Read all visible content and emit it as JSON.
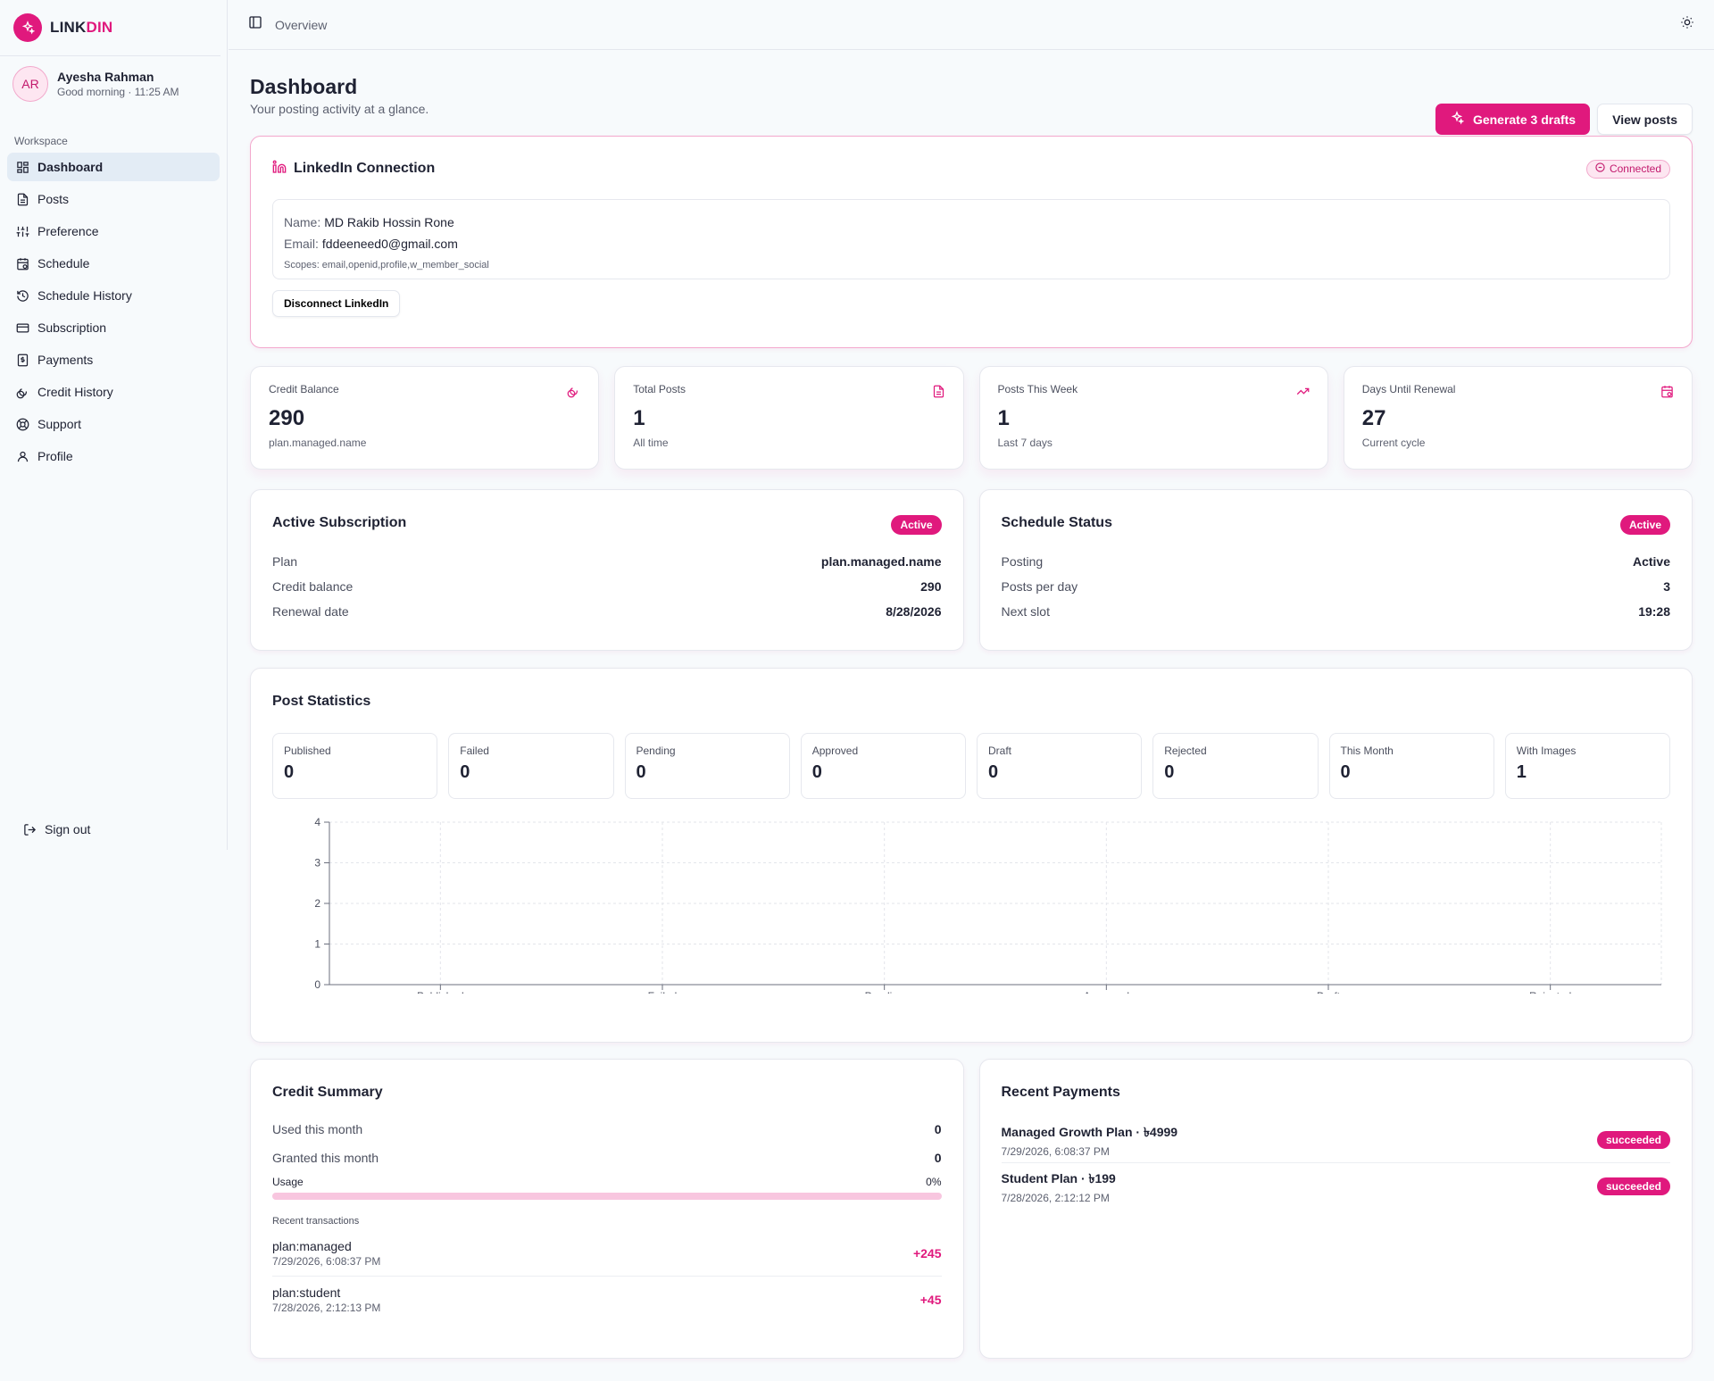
{
  "brand": {
    "part1": "LINK",
    "part2": "DIN",
    "accent": "#e0197d"
  },
  "user": {
    "initials": "AR",
    "name": "Ayesha Rahman",
    "greeting": "Good morning · 11:25 AM"
  },
  "sidebar": {
    "section_label": "Workspace",
    "items": [
      {
        "label": "Dashboard",
        "icon": "dashboard-icon"
      },
      {
        "label": "Posts",
        "icon": "document-icon"
      },
      {
        "label": "Preference",
        "icon": "sliders-icon"
      },
      {
        "label": "Schedule",
        "icon": "calendar-clock-icon"
      },
      {
        "label": "Schedule History",
        "icon": "history-icon"
      },
      {
        "label": "Subscription",
        "icon": "credit-card-icon"
      },
      {
        "label": "Payments",
        "icon": "receipt-icon"
      },
      {
        "label": "Credit History",
        "icon": "coins-icon"
      },
      {
        "label": "Support",
        "icon": "lifebuoy-icon"
      },
      {
        "label": "Profile",
        "icon": "user-icon"
      }
    ],
    "signout": "Sign out"
  },
  "topbar": {
    "breadcrumb": "Overview"
  },
  "header": {
    "title": "Dashboard",
    "subtitle": "Your posting activity at a glance.",
    "primary_button": "Generate 3 drafts",
    "secondary_button": "View posts"
  },
  "connection": {
    "title": "LinkedIn Connection",
    "status": "Connected",
    "name_label": "Name:",
    "name": "MD Rakib Hossin Rone",
    "email_label": "Email:",
    "email": "fddeeneed0@gmail.com",
    "scopes_label": "Scopes:",
    "scopes": "email,openid,profile,w_member_social",
    "disconnect": "Disconnect LinkedIn"
  },
  "stats": [
    {
      "label": "Credit Balance",
      "value": "290",
      "note": "plan.managed.name",
      "icon": "coins-icon"
    },
    {
      "label": "Total Posts",
      "value": "1",
      "note": "All time",
      "icon": "document-icon"
    },
    {
      "label": "Posts This Week",
      "value": "1",
      "note": "Last 7 days",
      "icon": "trending-up-icon"
    },
    {
      "label": "Days Until Renewal",
      "value": "27",
      "note": "Current cycle",
      "icon": "calendar-clock-icon"
    }
  ],
  "subscription": {
    "title": "Active Subscription",
    "badge": "Active",
    "rows": [
      {
        "k": "Plan",
        "v": "plan.managed.name"
      },
      {
        "k": "Credit balance",
        "v": "290"
      },
      {
        "k": "Renewal date",
        "v": "8/28/2026"
      }
    ]
  },
  "schedule": {
    "title": "Schedule Status",
    "badge": "Active",
    "rows": [
      {
        "k": "Posting",
        "v": "Active"
      },
      {
        "k": "Posts per day",
        "v": "3"
      },
      {
        "k": "Next slot",
        "v": "19:28"
      }
    ]
  },
  "post_stats": {
    "title": "Post Statistics",
    "tiles": [
      {
        "label": "Published",
        "value": "0"
      },
      {
        "label": "Failed",
        "value": "0"
      },
      {
        "label": "Pending",
        "value": "0"
      },
      {
        "label": "Approved",
        "value": "0"
      },
      {
        "label": "Draft",
        "value": "0"
      },
      {
        "label": "Rejected",
        "value": "0"
      },
      {
        "label": "This Month",
        "value": "0"
      },
      {
        "label": "With Images",
        "value": "1"
      }
    ]
  },
  "chart_data": {
    "type": "bar",
    "categories": [
      "Published",
      "Failed",
      "Pending",
      "Approved",
      "Draft",
      "Rejected"
    ],
    "values": [
      0,
      0,
      0,
      0,
      0,
      0
    ],
    "title": "",
    "xlabel": "",
    "ylabel": "",
    "ylim": [
      0,
      4
    ],
    "yticks": [
      "0",
      "1",
      "2",
      "3",
      "4"
    ],
    "grid": true
  },
  "credit_summary": {
    "title": "Credit Summary",
    "rows": [
      {
        "k": "Used this month",
        "v": "0"
      },
      {
        "k": "Granted this month",
        "v": "0"
      }
    ],
    "usage_label": "Usage",
    "usage_pct": "0%",
    "usage_value": 0,
    "recent_label": "Recent transactions",
    "transactions": [
      {
        "name": "plan:managed",
        "date": "7/29/2026, 6:08:37 PM",
        "amount": "+245"
      },
      {
        "name": "plan:student",
        "date": "7/28/2026, 2:12:13 PM",
        "amount": "+45"
      }
    ]
  },
  "payments": {
    "title": "Recent Payments",
    "items": [
      {
        "name": "Managed Growth Plan · ৳4999",
        "date": "7/29/2026, 6:08:37 PM",
        "status": "succeeded"
      },
      {
        "name": "Student Plan · ৳199",
        "date": "7/28/2026, 2:12:12 PM",
        "status": "succeeded"
      }
    ]
  }
}
